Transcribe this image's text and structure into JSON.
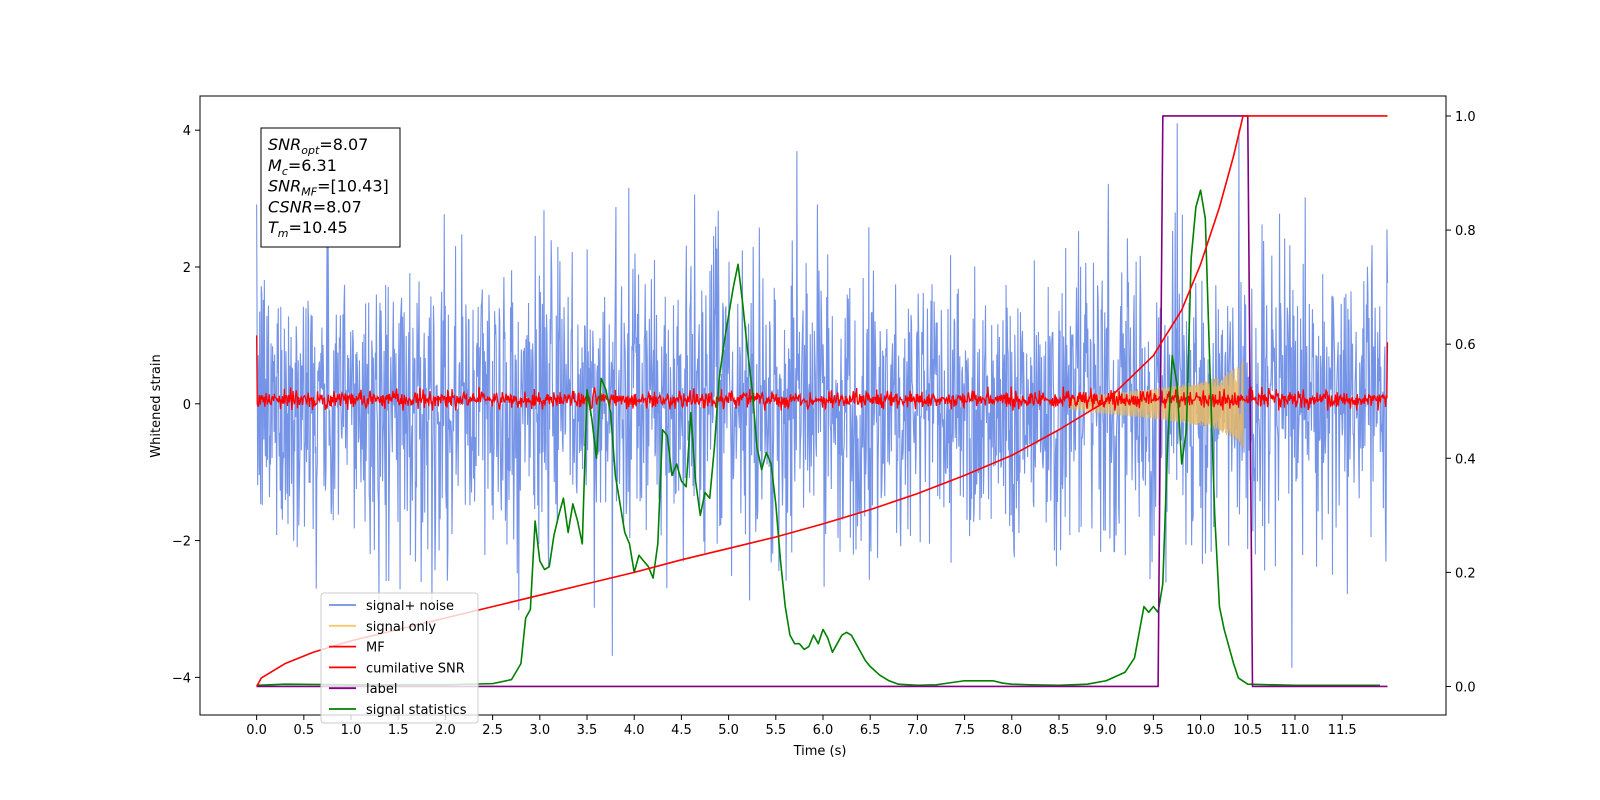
{
  "chart_data": {
    "type": "line",
    "xlabel": "Time (s)",
    "ylabel": "Whitened strain",
    "xlim": [
      -0.6,
      12.6
    ],
    "ylim": [
      -4.55,
      4.5
    ],
    "y2lim": [
      -0.05,
      1.035
    ],
    "x_ticks": [
      "0.0",
      "0.5",
      "1.0",
      "1.5",
      "2.0",
      "2.5",
      "3.0",
      "3.5",
      "4.0",
      "4.5",
      "5.0",
      "5.5",
      "6.0",
      "6.5",
      "7.0",
      "7.5",
      "8.0",
      "8.5",
      "9.0",
      "9.5",
      "10.0",
      "10.5",
      "11.0",
      "11.5"
    ],
    "y_ticks": [
      "4",
      "2",
      "0",
      "−2",
      "−4"
    ],
    "y2_ticks": [
      "1.0",
      "0.8",
      "0.6",
      "0.4",
      "0.2",
      "0.0"
    ],
    "grid": false,
    "legend_position": "lower-left",
    "legend": [
      {
        "name": "signal+ noise",
        "color": "#6f8ee6"
      },
      {
        "name": "signal only",
        "color": "#f5c96b"
      },
      {
        "name": "MF",
        "color": "#ff0000"
      },
      {
        "name": "cumilative SNR",
        "color": "#ff0000"
      },
      {
        "name": "label",
        "color": "#800080"
      },
      {
        "name": "signal statistics",
        "color": "#008000"
      }
    ],
    "stats_box": [
      {
        "sym": "SNR",
        "sub": "opt",
        "rest": "=8.07"
      },
      {
        "sym": "M",
        "sub": "c",
        "rest": "=6.31"
      },
      {
        "sym": "SNR",
        "sub": "MF",
        "rest": "=[10.43]"
      },
      {
        "sym": "CSNR",
        "sub": "",
        "rest": "=8.07"
      },
      {
        "sym": "T",
        "sub": "m",
        "rest": "=10.45"
      }
    ],
    "series": [
      {
        "name": "signal+ noise",
        "axis": "left",
        "description": "whitened noise plus chirp, roughly Gaussian, sampled over 0-12 s",
        "x_range": [
          0.0,
          11.98
        ],
        "typical_range": [
          -2.3,
          2.3
        ],
        "extreme_range": [
          -4.1,
          4.1
        ]
      },
      {
        "name": "signal only",
        "axis": "left",
        "description": "chirp envelope growing until merger",
        "envelope": {
          "x": [
            8.6,
            9.0,
            9.5,
            10.0,
            10.2,
            10.4,
            10.45
          ],
          "amp": [
            0.08,
            0.15,
            0.22,
            0.32,
            0.4,
            0.55,
            0.65
          ]
        }
      },
      {
        "name": "MF",
        "axis": "left",
        "description": "matched-filter output, small fluctuations around 0.05 with spikes at edges",
        "x_range": [
          0.0,
          11.98
        ],
        "typical_range": [
          -0.1,
          0.25
        ],
        "edge_values": {
          "start": 1.0,
          "end": 0.9
        }
      },
      {
        "name": "cumilative SNR",
        "axis": "right",
        "x": [
          0.0,
          0.05,
          0.3,
          0.6,
          1.0,
          1.5,
          2.0,
          2.5,
          3.0,
          3.5,
          4.0,
          4.5,
          5.0,
          5.5,
          6.0,
          6.5,
          7.0,
          7.5,
          8.0,
          8.5,
          9.0,
          9.5,
          9.8,
          10.0,
          10.2,
          10.35,
          10.45,
          10.6,
          11.0,
          11.5,
          11.98
        ],
        "values": [
          0.0,
          0.015,
          0.04,
          0.06,
          0.08,
          0.1,
          0.12,
          0.14,
          0.16,
          0.18,
          0.2,
          0.222,
          0.242,
          0.262,
          0.285,
          0.31,
          0.338,
          0.37,
          0.405,
          0.45,
          0.5,
          0.58,
          0.66,
          0.74,
          0.84,
          0.93,
          1.0,
          1.0,
          1.0,
          1.0,
          1.0
        ]
      },
      {
        "name": "label",
        "axis": "right",
        "x": [
          0.0,
          9.55,
          9.6,
          10.5,
          10.55,
          11.98
        ],
        "values": [
          0.0,
          0.0,
          1.0,
          1.0,
          0.0,
          0.0
        ]
      },
      {
        "name": "signal statistics",
        "axis": "right",
        "x": [
          0.0,
          0.3,
          1.0,
          2.0,
          2.5,
          2.7,
          2.8,
          2.85,
          2.9,
          2.95,
          3.0,
          3.05,
          3.1,
          3.15,
          3.2,
          3.25,
          3.3,
          3.35,
          3.4,
          3.45,
          3.5,
          3.55,
          3.6,
          3.65,
          3.7,
          3.75,
          3.8,
          3.85,
          3.9,
          3.95,
          4.0,
          4.05,
          4.1,
          4.15,
          4.2,
          4.25,
          4.3,
          4.35,
          4.4,
          4.45,
          4.5,
          4.55,
          4.6,
          4.65,
          4.7,
          4.75,
          4.8,
          4.85,
          4.9,
          4.95,
          5.0,
          5.05,
          5.1,
          5.15,
          5.2,
          5.25,
          5.3,
          5.35,
          5.4,
          5.45,
          5.5,
          5.55,
          5.6,
          5.65,
          5.7,
          5.75,
          5.8,
          5.85,
          5.9,
          5.95,
          6.0,
          6.05,
          6.1,
          6.15,
          6.2,
          6.25,
          6.3,
          6.35,
          6.4,
          6.45,
          6.5,
          6.6,
          6.7,
          6.8,
          7.0,
          7.2,
          7.5,
          7.8,
          7.9,
          8.0,
          8.2,
          8.5,
          8.8,
          9.0,
          9.2,
          9.3,
          9.4,
          9.45,
          9.5,
          9.55,
          9.6,
          9.65,
          9.7,
          9.75,
          9.8,
          9.85,
          9.9,
          9.95,
          10.0,
          10.05,
          10.1,
          10.15,
          10.2,
          10.25,
          10.3,
          10.35,
          10.4,
          10.5,
          11.0,
          11.5,
          11.9
        ],
        "values": [
          0.002,
          0.004,
          0.003,
          0.003,
          0.005,
          0.012,
          0.04,
          0.12,
          0.135,
          0.29,
          0.22,
          0.205,
          0.21,
          0.265,
          0.3,
          0.33,
          0.27,
          0.32,
          0.29,
          0.25,
          0.52,
          0.47,
          0.4,
          0.54,
          0.52,
          0.48,
          0.37,
          0.32,
          0.27,
          0.25,
          0.2,
          0.23,
          0.22,
          0.21,
          0.19,
          0.25,
          0.45,
          0.44,
          0.37,
          0.39,
          0.36,
          0.35,
          0.48,
          0.36,
          0.3,
          0.34,
          0.33,
          0.42,
          0.54,
          0.6,
          0.65,
          0.7,
          0.74,
          0.67,
          0.59,
          0.52,
          0.42,
          0.38,
          0.41,
          0.39,
          0.32,
          0.22,
          0.14,
          0.09,
          0.075,
          0.075,
          0.065,
          0.07,
          0.09,
          0.075,
          0.1,
          0.085,
          0.06,
          0.075,
          0.09,
          0.095,
          0.09,
          0.075,
          0.06,
          0.045,
          0.035,
          0.02,
          0.01,
          0.004,
          0.002,
          0.003,
          0.01,
          0.01,
          0.006,
          0.004,
          0.003,
          0.002,
          0.004,
          0.01,
          0.025,
          0.05,
          0.14,
          0.13,
          0.14,
          0.13,
          0.18,
          0.42,
          0.58,
          0.53,
          0.39,
          0.45,
          0.75,
          0.84,
          0.87,
          0.82,
          0.55,
          0.3,
          0.14,
          0.1,
          0.07,
          0.04,
          0.015,
          0.004,
          0.002,
          0.002,
          0.002
        ]
      }
    ]
  }
}
